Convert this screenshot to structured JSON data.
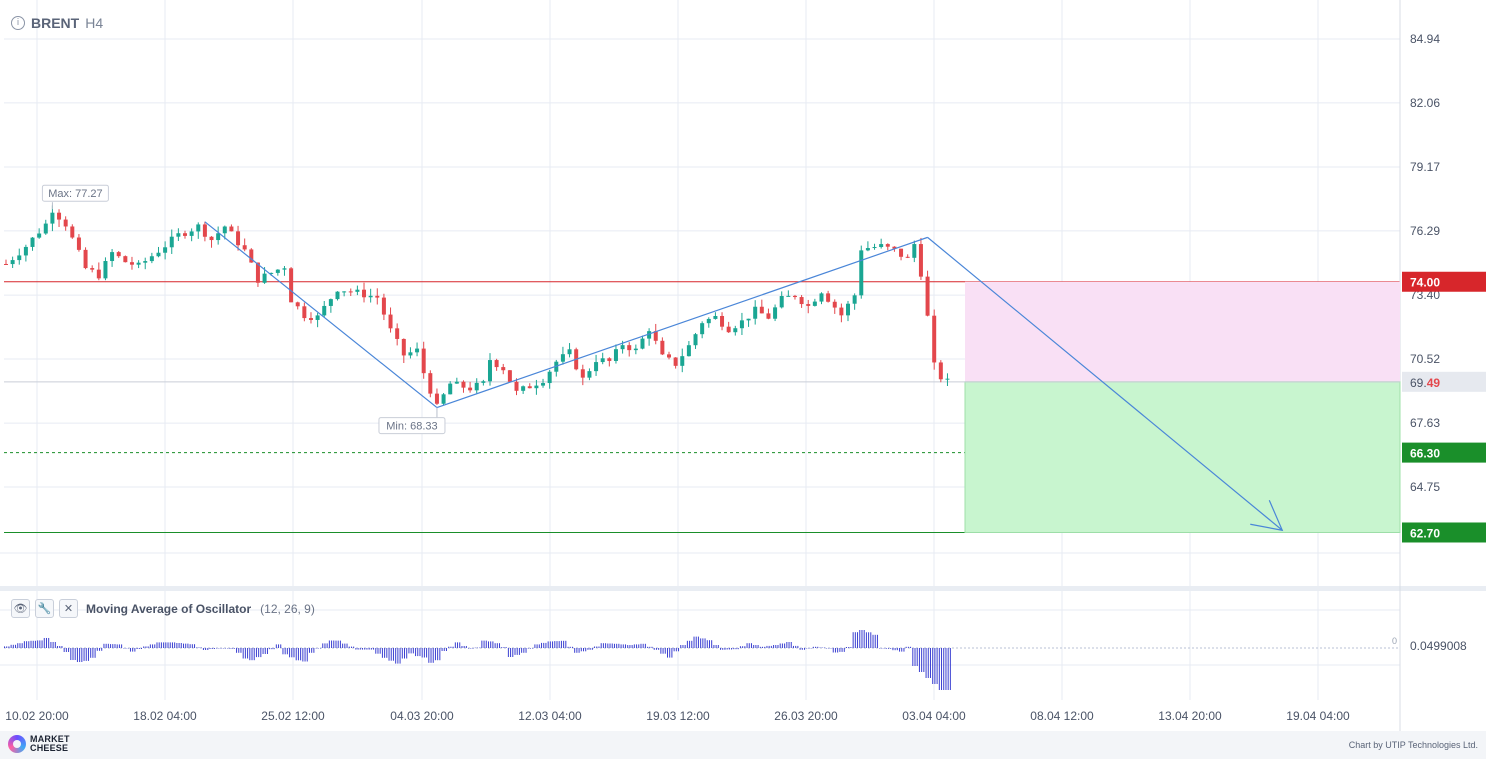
{
  "header": {
    "symbol": "BRENT",
    "timeframe": "H4"
  },
  "chart_data": {
    "type": "candlestick",
    "symbol": "BRENT",
    "timeframe": "H4",
    "x_ticks": [
      "10.02 20:00",
      "18.02 04:00",
      "25.02 12:00",
      "04.03 20:00",
      "12.03 04:00",
      "19.03 12:00",
      "26.03 20:00",
      "03.04 04:00",
      "08.04 12:00",
      "13.04 20:00",
      "19.04 04:00"
    ],
    "y_ticks": [
      "84.94",
      "82.06",
      "79.17",
      "76.29",
      "73.40",
      "70.52",
      "67.63",
      "64.75"
    ],
    "ylim": [
      61.8,
      85.8
    ],
    "price_path": [
      [
        0,
        74.8
      ],
      [
        3,
        75.6
      ],
      [
        6,
        76.6
      ],
      [
        7,
        77.27
      ],
      [
        9,
        76.6
      ],
      [
        12,
        74.6
      ],
      [
        14,
        74.3
      ],
      [
        16,
        75.3
      ],
      [
        18,
        74.9
      ],
      [
        20,
        74.7
      ],
      [
        23,
        75.4
      ],
      [
        26,
        76.1
      ],
      [
        29,
        76.5
      ],
      [
        31,
        75.9
      ],
      [
        33,
        76.5
      ],
      [
        36,
        75.4
      ],
      [
        38,
        74.1
      ],
      [
        40,
        74.4
      ],
      [
        42,
        74.7
      ],
      [
        43,
        73.2
      ],
      [
        45,
        72.5
      ],
      [
        47,
        72.4
      ],
      [
        50,
        73.7
      ],
      [
        53,
        73.5
      ],
      [
        56,
        73.3
      ],
      [
        58,
        71.8
      ],
      [
        60,
        70.7
      ],
      [
        62,
        70.9
      ],
      [
        63,
        69.9
      ],
      [
        65,
        68.33
      ],
      [
        67,
        69.4
      ],
      [
        70,
        69.2
      ],
      [
        72,
        69.4
      ],
      [
        73,
        70.5
      ],
      [
        75,
        70.1
      ],
      [
        77,
        69.0
      ],
      [
        79,
        69.3
      ],
      [
        81,
        69.6
      ],
      [
        83,
        70.4
      ],
      [
        85,
        70.8
      ],
      [
        87,
        69.6
      ],
      [
        89,
        70.5
      ],
      [
        91,
        70.4
      ],
      [
        93,
        71.2
      ],
      [
        95,
        70.9
      ],
      [
        97,
        71.9
      ],
      [
        99,
        70.6
      ],
      [
        101,
        70.3
      ],
      [
        103,
        71.1
      ],
      [
        105,
        72.2
      ],
      [
        107,
        72.4
      ],
      [
        109,
        71.9
      ],
      [
        111,
        72.2
      ],
      [
        113,
        72.7
      ],
      [
        115,
        72.4
      ],
      [
        117,
        73.2
      ],
      [
        119,
        73.4
      ],
      [
        121,
        72.9
      ],
      [
        123,
        73.6
      ],
      [
        126,
        72.5
      ],
      [
        128,
        73.4
      ],
      [
        129,
        75.5
      ],
      [
        132,
        75.6
      ],
      [
        134,
        75.4
      ],
      [
        136,
        75.0
      ],
      [
        137,
        75.7
      ],
      [
        138,
        74.4
      ],
      [
        139,
        72.4
      ],
      [
        140,
        70.2
      ],
      [
        141,
        69.7
      ],
      [
        142,
        69.49
      ]
    ],
    "current_price": 69.49,
    "levels": [
      {
        "price": 74.0,
        "label": "74.00",
        "color": "#d7262b",
        "style": "solid"
      },
      {
        "price": 66.3,
        "label": "66.30",
        "color": "#1a8f2a",
        "style": "dashed"
      },
      {
        "price": 62.7,
        "label": "62.70",
        "color": "#1a8f2a",
        "style": "solid"
      }
    ],
    "current_price_label": {
      "prefix": "69.",
      "suffix": "49"
    },
    "annotations": [
      {
        "label": "Max: 77.27",
        "price": 77.27
      },
      {
        "label": "Min: 68.33",
        "price": 68.33
      }
    ],
    "colors": {
      "up": "#1aa693",
      "down": "#e3474c",
      "trend": "#4a86d8",
      "grid": "#e7ebf3",
      "sell_zone": "#f9e0f5",
      "tp_zone": "#c8f5cf"
    },
    "oscillator": {
      "name": "Moving Average of Oscillator",
      "params": "(12, 26, 9)",
      "value_label": "0.0499008",
      "zero_label": "0",
      "color": "#3a3fd1"
    }
  },
  "footer": {
    "logo_line1": "MARKET",
    "logo_line2": "CHEESE",
    "credit": "Chart by UTIP Technologies Ltd."
  }
}
